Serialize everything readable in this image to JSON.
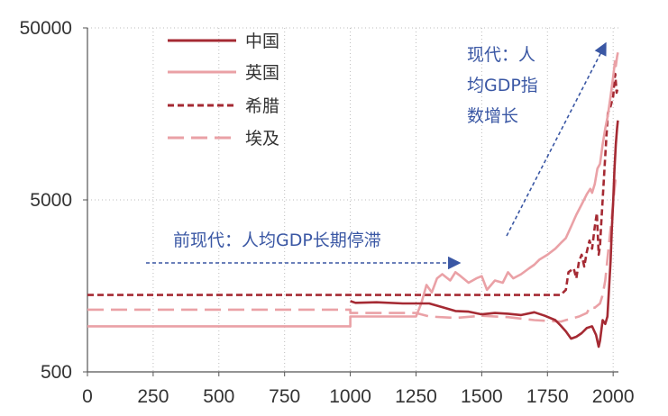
{
  "chart_data": {
    "type": "line",
    "title": "",
    "xlabel": "",
    "ylabel": "",
    "xlim": [
      0,
      2020
    ],
    "ylim": [
      500,
      50000
    ],
    "yscale": "log",
    "grid": "dotted",
    "legend_position": "top-left",
    "x_ticks": [
      0,
      250,
      500,
      750,
      1000,
      1250,
      1500,
      1750,
      2000
    ],
    "x_tick_labels": [
      "0",
      "250",
      "500",
      "750",
      "1000",
      "1250",
      "1500",
      "1750",
      "2000"
    ],
    "y_ticks": [
      500,
      5000,
      50000
    ],
    "y_tick_labels": [
      "500",
      "5000",
      "50000"
    ],
    "series": [
      {
        "name": "中国",
        "color": "#a52a33",
        "style": "solid",
        "points": [
          [
            1000,
            1290
          ],
          [
            1020,
            1260
          ],
          [
            1100,
            1270
          ],
          [
            1200,
            1250
          ],
          [
            1300,
            1250
          ],
          [
            1350,
            1190
          ],
          [
            1400,
            1130
          ],
          [
            1450,
            1120
          ],
          [
            1500,
            1080
          ],
          [
            1550,
            1100
          ],
          [
            1600,
            1090
          ],
          [
            1650,
            1070
          ],
          [
            1700,
            1110
          ],
          [
            1740,
            1060
          ],
          [
            1780,
            1000
          ],
          [
            1800,
            930
          ],
          [
            1820,
            860
          ],
          [
            1840,
            780
          ],
          [
            1860,
            800
          ],
          [
            1880,
            840
          ],
          [
            1900,
            900
          ],
          [
            1920,
            920
          ],
          [
            1935,
            820
          ],
          [
            1945,
            700
          ],
          [
            1950,
            760
          ],
          [
            1960,
            1000
          ],
          [
            1970,
            950
          ],
          [
            1978,
            1050
          ],
          [
            1985,
            1600
          ],
          [
            1990,
            2200
          ],
          [
            1995,
            3400
          ],
          [
            2000,
            4900
          ],
          [
            2005,
            7500
          ],
          [
            2010,
            10500
          ],
          [
            2015,
            13000
          ],
          [
            2018,
            14500
          ]
        ]
      },
      {
        "name": "英国",
        "color": "#eaa1a6",
        "style": "solid",
        "points": [
          [
            0,
            920
          ],
          [
            1000,
            920
          ],
          [
            1000,
            1050
          ],
          [
            1250,
            1050
          ],
          [
            1270,
            1250
          ],
          [
            1290,
            1600
          ],
          [
            1310,
            1450
          ],
          [
            1330,
            1750
          ],
          [
            1350,
            1850
          ],
          [
            1380,
            1700
          ],
          [
            1400,
            1900
          ],
          [
            1420,
            1800
          ],
          [
            1450,
            1650
          ],
          [
            1480,
            1750
          ],
          [
            1500,
            1800
          ],
          [
            1520,
            1500
          ],
          [
            1550,
            1700
          ],
          [
            1580,
            1650
          ],
          [
            1600,
            1900
          ],
          [
            1620,
            1750
          ],
          [
            1650,
            1850
          ],
          [
            1680,
            2000
          ],
          [
            1700,
            2100
          ],
          [
            1720,
            2250
          ],
          [
            1750,
            2400
          ],
          [
            1780,
            2600
          ],
          [
            1800,
            2800
          ],
          [
            1820,
            3000
          ],
          [
            1840,
            3500
          ],
          [
            1860,
            4100
          ],
          [
            1880,
            4700
          ],
          [
            1900,
            5400
          ],
          [
            1913,
            5800
          ],
          [
            1920,
            5500
          ],
          [
            1930,
            6200
          ],
          [
            1940,
            7600
          ],
          [
            1950,
            8100
          ],
          [
            1960,
            10500
          ],
          [
            1970,
            13000
          ],
          [
            1980,
            15500
          ],
          [
            1990,
            20000
          ],
          [
            2000,
            26000
          ],
          [
            2007,
            32000
          ],
          [
            2010,
            30000
          ],
          [
            2015,
            34000
          ],
          [
            2018,
            36000
          ]
        ]
      },
      {
        "name": "希腊",
        "color": "#a52a33",
        "style": "dashed",
        "points": [
          [
            0,
            1400
          ],
          [
            1800,
            1400
          ],
          [
            1820,
            1500
          ],
          [
            1830,
            1900
          ],
          [
            1850,
            2000
          ],
          [
            1860,
            1750
          ],
          [
            1870,
            2200
          ],
          [
            1880,
            2400
          ],
          [
            1890,
            2050
          ],
          [
            1900,
            2500
          ],
          [
            1910,
            2900
          ],
          [
            1920,
            2600
          ],
          [
            1930,
            3500
          ],
          [
            1938,
            4200
          ],
          [
            1945,
            2400
          ],
          [
            1950,
            2700
          ],
          [
            1955,
            3700
          ],
          [
            1960,
            5000
          ],
          [
            1970,
            9000
          ],
          [
            1980,
            16000
          ],
          [
            1990,
            17500
          ],
          [
            2000,
            20000
          ],
          [
            2005,
            25000
          ],
          [
            2008,
            27000
          ],
          [
            2013,
            21000
          ],
          [
            2018,
            22500
          ]
        ]
      },
      {
        "name": "埃及",
        "color": "#eaa1a6",
        "style": "dashed",
        "points": [
          [
            0,
            1150
          ],
          [
            1000,
            1150
          ],
          [
            1000,
            1100
          ],
          [
            1250,
            1100
          ],
          [
            1300,
            1050
          ],
          [
            1400,
            1030
          ],
          [
            1500,
            1060
          ],
          [
            1600,
            1040
          ],
          [
            1700,
            1000
          ],
          [
            1800,
            980
          ],
          [
            1820,
            1000
          ],
          [
            1870,
            1050
          ],
          [
            1900,
            1100
          ],
          [
            1913,
            1200
          ],
          [
            1930,
            1180
          ],
          [
            1950,
            1250
          ],
          [
            1960,
            1400
          ],
          [
            1970,
            1700
          ],
          [
            1980,
            2400
          ],
          [
            1990,
            3400
          ],
          [
            2000,
            4800
          ],
          [
            2010,
            6800
          ],
          [
            2018,
            7200
          ]
        ]
      }
    ],
    "annotations": [
      {
        "text": "前现代：人均GDP长期停滞"
      },
      {
        "text_lines": [
          "现代：人",
          "均GDP指",
          "数增长"
        ]
      }
    ]
  }
}
